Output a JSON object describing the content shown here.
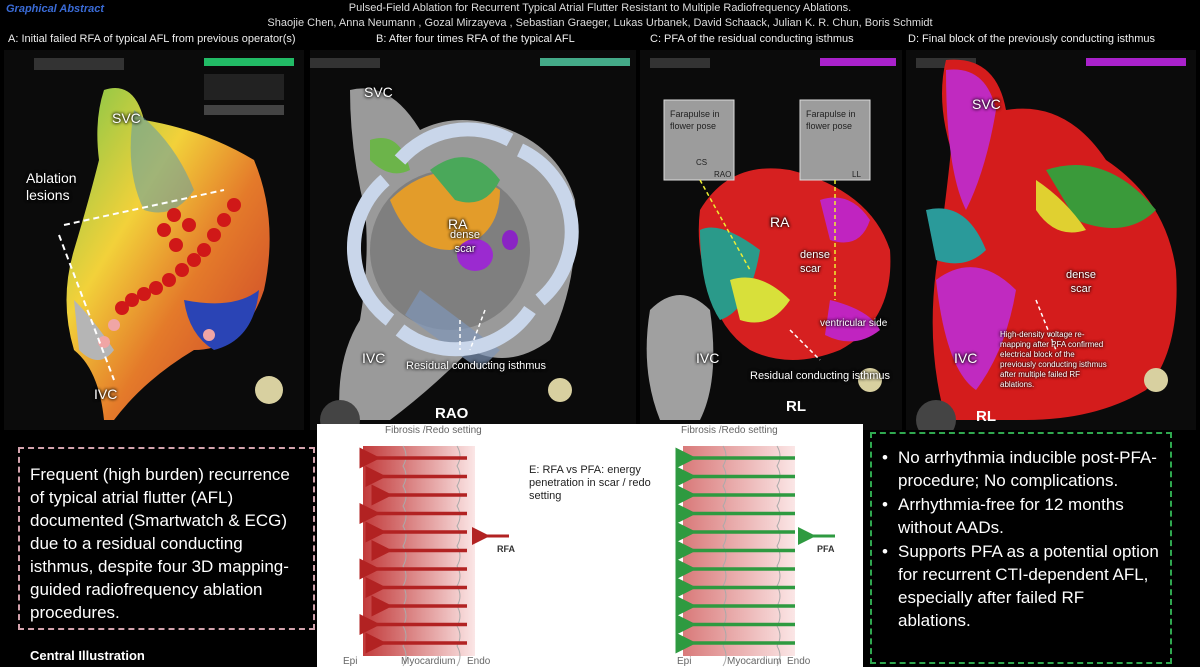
{
  "header": {
    "graphical_abstract": "Graphical Abstract",
    "title": "Pulsed-Field Ablation for Recurrent Typical Atrial Flutter Resistant to Multiple Radiofrequency Ablations.",
    "authors": "Shaojie Chen, Anna Neumann , Gozal Mirzayeva , Sebastian Graeger, Lukas Urbanek, David Schaack, Julian K. R. Chun, Boris Schmidt"
  },
  "panels": {
    "a": {
      "label": "A: Initial failed RFA of typical AFL from previous operator(s)",
      "svc": "SVC",
      "ivc": "IVC",
      "ablation": "Ablation\nlesions"
    },
    "b": {
      "label": "B: After four times RFA of the typical AFL",
      "svc": "SVC",
      "ivc": "IVC",
      "ra": "RA",
      "scar": "dense\nscar",
      "isthmus": "Residual conducting isthmus",
      "view": "RAO"
    },
    "c": {
      "label": "C: PFA of the residual conducting isthmus",
      "ra": "RA",
      "scar": "dense\nscar",
      "ivc": "IVC",
      "ventricular": "ventricular side",
      "isthmus": "Residual conducting isthmus",
      "view": "RL",
      "inset_text": "Farapulse in\nflower pose",
      "inset_cs": "CS",
      "inset_rao": "RAO",
      "inset_ll": "LL"
    },
    "d": {
      "label": "D: Final block of the previously conducting isthmus",
      "svc": "SVC",
      "ivc": "IVC",
      "scar": "dense\nscar",
      "view": "RL",
      "note": "High-density voltage re-\nmapping after PFA confirmed\nelectrical block of the\npreviously conducting isthmus\nafter multiple failed RF\nablations."
    }
  },
  "left_box": {
    "text": "Frequent (high burden) recurrence of typical atrial flutter (AFL) documented (Smartwatch & ECG) due to a residual conducting isthmus, despite four 3D mapping-guided radiofrequency ablation procedures."
  },
  "middle": {
    "fibrosis_left": "Fibrosis /Redo setting",
    "fibrosis_right": "Fibrosis /Redo setting",
    "e_text": "E: RFA vs PFA: energy penetration in scar / redo setting",
    "rfa": "RFA",
    "pfa": "PFA",
    "bottom_labels": [
      "Epi",
      "Myocardium",
      "Endo",
      "Epi",
      "Myocardium",
      "Endo"
    ],
    "colors": {
      "rfa": "#b22222",
      "pfa": "#2e9a40"
    }
  },
  "right_box": {
    "items": [
      "No arrhythmia inducible post-PFA-procedure; No complications.",
      "Arrhythmia-free for 12 months without AADs.",
      "Supports PFA as a potential option for recurrent CTI-dependent AFL, especially after failed RF ablations."
    ]
  },
  "footer": {
    "central": "Central Illustration"
  }
}
